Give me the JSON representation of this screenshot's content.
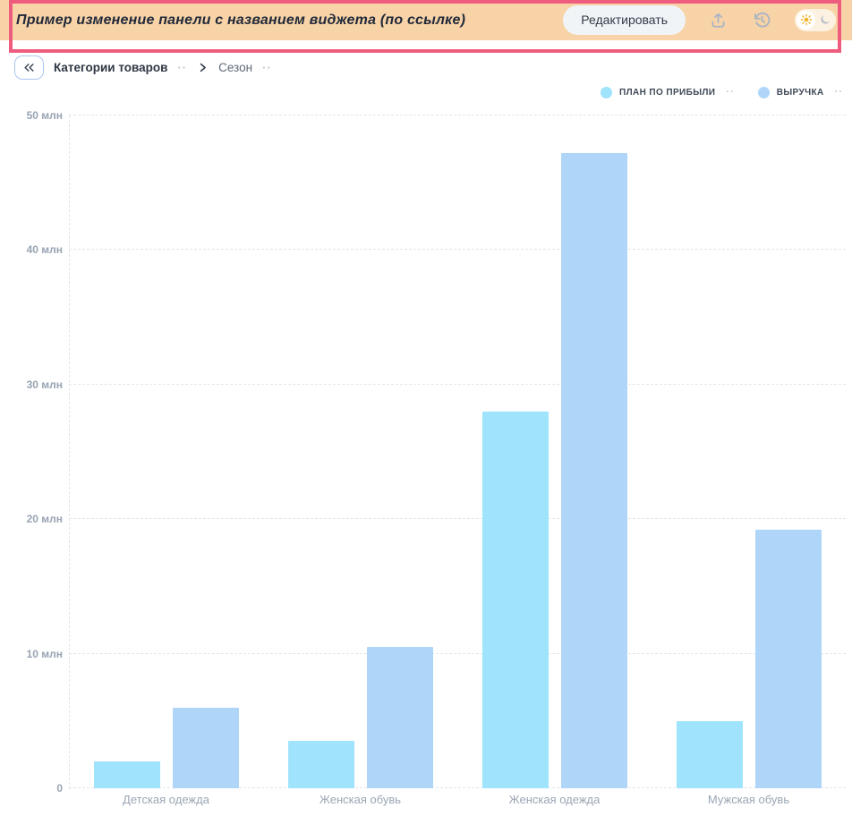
{
  "header": {
    "title": "Пример изменение панели с названием виджета (по ссылке)",
    "edit_button_label": "Редактировать",
    "icons": [
      "export-icon",
      "history-icon",
      "sun-icon",
      "moon-icon"
    ],
    "theme_active": "light",
    "colors": {
      "background": "#f8d3a7",
      "highlight_border": "#ee5d7d",
      "icon": "#a9b4c4",
      "sun": "#f0b429"
    }
  },
  "breadcrumb": {
    "collapse_icon": "double-chevron-left-icon",
    "items": [
      {
        "label": "Категории товаров"
      },
      {
        "label": "Сезон"
      }
    ],
    "more_dots": "··"
  },
  "chart_data": {
    "type": "bar",
    "title": "",
    "categories": [
      "Детская одежда",
      "Женская обувь",
      "Женская одежда",
      "Мужская обувь"
    ],
    "series": [
      {
        "name": "ПЛАН ПО ПРИБЫЛИ",
        "color": "#9fe3fc",
        "values": [
          2,
          3.5,
          28,
          5
        ]
      },
      {
        "name": "ВЫРУЧКА",
        "color": "#afd5f9",
        "values": [
          6,
          10.5,
          47.2,
          19.2
        ]
      }
    ],
    "unit": "млн",
    "ylim": [
      0,
      50
    ],
    "yticks": [
      {
        "value": 0,
        "label": "0"
      },
      {
        "value": 10,
        "label": "10 млн"
      },
      {
        "value": 20,
        "label": "20 млн"
      },
      {
        "value": 30,
        "label": "30 млн"
      },
      {
        "value": 40,
        "label": "40 млн"
      },
      {
        "value": 50,
        "label": "50 млн"
      }
    ],
    "grid": {
      "horizontal": true,
      "style": "dashed"
    },
    "legend_position": "top-right",
    "legend_more_dots": "··"
  }
}
